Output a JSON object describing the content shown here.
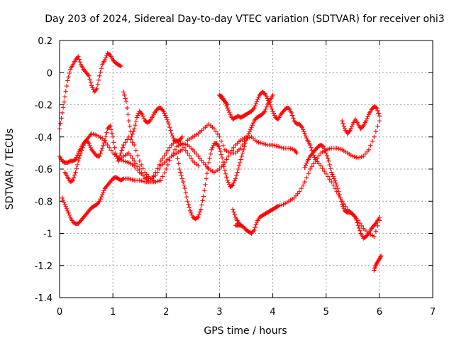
{
  "chart_data": {
    "type": "scatter",
    "title": "Day 203 of 2024, Sidereal Day-to-day VTEC variation (SDTVAR) for receiver ohi3",
    "xlabel": "GPS time / hours",
    "ylabel": "SDTVAR / TECUs",
    "xlim": [
      0,
      7
    ],
    "ylim": [
      -1.4,
      0.2
    ],
    "xticks": [
      0,
      1,
      2,
      3,
      4,
      5,
      6,
      7
    ],
    "yticks": [
      -1.4,
      -1.2,
      -1,
      -0.8,
      -0.6,
      -0.4,
      -0.2,
      0,
      0.2
    ],
    "grid": true,
    "marker": "+",
    "color": "#ff0000",
    "series": [
      {
        "name": "trace-1",
        "x": [
          0.0,
          0.05,
          0.1,
          0.15,
          0.2,
          0.25,
          0.3,
          0.35,
          0.4,
          0.45,
          0.5,
          0.55,
          0.6,
          0.65,
          0.7,
          0.75,
          0.8,
          0.85,
          0.9,
          0.95,
          1.0,
          1.05,
          1.1,
          1.15
        ],
        "y": [
          -0.35,
          -0.25,
          -0.15,
          -0.05,
          0.02,
          0.05,
          0.08,
          0.1,
          0.05,
          0.02,
          0.0,
          -0.02,
          -0.08,
          -0.12,
          -0.1,
          -0.02,
          0.05,
          0.08,
          0.12,
          0.11,
          0.08,
          0.06,
          0.05,
          0.04
        ]
      },
      {
        "name": "trace-2",
        "x": [
          0.0,
          0.05,
          0.1,
          0.15,
          0.2,
          0.25,
          0.3,
          0.35,
          0.4,
          0.45,
          0.5,
          0.55,
          0.6,
          0.65,
          0.7,
          0.75,
          0.8,
          0.85,
          0.9,
          0.95,
          1.0,
          1.05,
          1.1,
          1.2,
          1.3,
          1.4,
          1.5,
          1.6,
          1.7,
          1.8,
          1.9,
          2.0,
          2.1,
          2.2,
          2.3,
          2.4,
          2.5,
          2.6
        ],
        "y": [
          -0.52,
          -0.55,
          -0.56,
          -0.56,
          -0.55,
          -0.55,
          -0.54,
          -0.5,
          -0.47,
          -0.44,
          -0.42,
          -0.44,
          -0.48,
          -0.5,
          -0.52,
          -0.52,
          -0.47,
          -0.42,
          -0.35,
          -0.33,
          -0.4,
          -0.5,
          -0.55,
          -0.52,
          -0.5,
          -0.55,
          -0.6,
          -0.66,
          -0.68,
          -0.62,
          -0.55,
          -0.5,
          -0.45,
          -0.42,
          -0.45,
          -0.5,
          -0.55,
          -0.58
        ]
      },
      {
        "name": "trace-3",
        "x": [
          0.05,
          0.1,
          0.15,
          0.2,
          0.25,
          0.3,
          0.35,
          0.4,
          0.45,
          0.5,
          0.55,
          0.6,
          0.65,
          0.7,
          0.75,
          0.8,
          0.85,
          0.9,
          0.95,
          1.0,
          1.05,
          1.1,
          1.15,
          1.2,
          1.3,
          1.4,
          1.5,
          1.6,
          1.7,
          1.8
        ],
        "y": [
          -0.78,
          -0.82,
          -0.86,
          -0.9,
          -0.93,
          -0.94,
          -0.94,
          -0.92,
          -0.9,
          -0.88,
          -0.86,
          -0.84,
          -0.83,
          -0.82,
          -0.8,
          -0.76,
          -0.72,
          -0.7,
          -0.68,
          -0.66,
          -0.65,
          -0.66,
          -0.67,
          -0.66,
          -0.66,
          -0.67,
          -0.67,
          -0.68,
          -0.68,
          -0.68
        ]
      },
      {
        "name": "trace-4",
        "x": [
          0.1,
          0.15,
          0.2,
          0.25,
          0.3,
          0.35,
          0.4,
          0.45,
          0.5,
          0.55,
          0.6,
          0.7,
          0.8,
          0.9,
          1.0,
          1.1,
          1.2,
          1.3,
          1.4,
          1.5,
          1.6,
          1.7,
          1.8,
          1.9,
          2.0,
          2.1,
          2.2,
          2.3
        ],
        "y": [
          -0.62,
          -0.65,
          -0.68,
          -0.67,
          -0.62,
          -0.55,
          -0.5,
          -0.45,
          -0.42,
          -0.4,
          -0.38,
          -0.39,
          -0.41,
          -0.45,
          -0.5,
          -0.53,
          -0.55,
          -0.56,
          -0.58,
          -0.62,
          -0.65,
          -0.66,
          -0.64,
          -0.58,
          -0.55,
          -0.52,
          -0.5,
          -0.48
        ]
      },
      {
        "name": "trace-5",
        "x": [
          1.2,
          1.25,
          1.3,
          1.35,
          1.4,
          1.45,
          1.5,
          1.55,
          1.6,
          1.65,
          1.7,
          1.75,
          1.8,
          1.85,
          1.9,
          1.95,
          2.0,
          2.05,
          2.1,
          2.15,
          2.2,
          2.25,
          2.3
        ],
        "y": [
          -0.12,
          -0.18,
          -0.3,
          -0.4,
          -0.35,
          -0.28,
          -0.24,
          -0.26,
          -0.3,
          -0.31,
          -0.3,
          -0.27,
          -0.24,
          -0.22,
          -0.22,
          -0.24,
          -0.28,
          -0.32,
          -0.38,
          -0.42,
          -0.43,
          -0.42,
          -0.4
        ]
      },
      {
        "name": "trace-6",
        "x": [
          1.1,
          1.15,
          1.2,
          1.3,
          1.4,
          1.5,
          1.6,
          1.7,
          1.8,
          1.9,
          2.0,
          2.1,
          2.2,
          2.3,
          2.4,
          2.5,
          2.6,
          2.7,
          2.8,
          2.9,
          3.0,
          3.1,
          3.2,
          3.3,
          3.4,
          3.5
        ],
        "y": [
          -0.55,
          -0.5,
          -0.45,
          -0.4,
          -0.45,
          -0.55,
          -0.62,
          -0.66,
          -0.68,
          -0.67,
          -0.6,
          -0.52,
          -0.46,
          -0.44,
          -0.45,
          -0.48,
          -0.52,
          -0.56,
          -0.6,
          -0.62,
          -0.6,
          -0.56,
          -0.5,
          -0.45,
          -0.42,
          -0.4
        ]
      },
      {
        "name": "trace-7",
        "x": [
          2.2,
          2.25,
          2.3,
          2.35,
          2.4,
          2.45,
          2.5,
          2.55,
          2.6,
          2.65,
          2.7,
          2.75,
          2.8,
          2.85,
          2.9,
          2.95,
          3.0,
          3.05,
          3.1,
          3.15,
          3.2,
          3.25,
          3.3,
          3.35,
          3.4,
          3.45,
          3.5,
          3.55,
          3.6,
          3.65,
          3.7,
          3.75,
          3.8,
          3.85,
          3.9,
          3.95,
          4.0
        ],
        "y": [
          -0.5,
          -0.6,
          -0.66,
          -0.72,
          -0.8,
          -0.86,
          -0.9,
          -0.91,
          -0.9,
          -0.85,
          -0.77,
          -0.66,
          -0.56,
          -0.48,
          -0.44,
          -0.44,
          -0.47,
          -0.53,
          -0.61,
          -0.67,
          -0.71,
          -0.7,
          -0.66,
          -0.6,
          -0.54,
          -0.48,
          -0.42,
          -0.38,
          -0.34,
          -0.3,
          -0.28,
          -0.27,
          -0.26,
          -0.24,
          -0.2,
          -0.17,
          -0.14
        ]
      },
      {
        "name": "trace-8",
        "x": [
          2.4,
          2.5,
          2.6,
          2.7,
          2.8,
          2.9,
          3.0,
          3.1,
          3.2,
          3.3,
          3.4,
          3.5,
          3.6,
          3.7,
          3.8,
          3.9,
          4.0,
          4.1,
          4.2,
          4.3,
          4.4,
          4.45
        ],
        "y": [
          -0.42,
          -0.4,
          -0.38,
          -0.35,
          -0.32,
          -0.35,
          -0.4,
          -0.48,
          -0.5,
          -0.5,
          -0.47,
          -0.41,
          -0.4,
          -0.43,
          -0.44,
          -0.45,
          -0.45,
          -0.46,
          -0.47,
          -0.47,
          -0.48,
          -0.5
        ]
      },
      {
        "name": "trace-9",
        "x": [
          3.0,
          3.05,
          3.1,
          3.15,
          3.2,
          3.25,
          3.3,
          3.35,
          3.4,
          3.45,
          3.5,
          3.55,
          3.6,
          3.65,
          3.7,
          3.75,
          3.8,
          3.85,
          3.9,
          3.95,
          4.0,
          4.05,
          4.1,
          4.15,
          4.2,
          4.25,
          4.3,
          4.35,
          4.4,
          4.45,
          4.5,
          4.55,
          4.6,
          4.65,
          4.7,
          4.75,
          4.8,
          4.9,
          5.0,
          5.1,
          5.2,
          5.3,
          5.4,
          5.5,
          5.6,
          5.7,
          5.8,
          5.9,
          6.0
        ],
        "y": [
          -0.14,
          -0.15,
          -0.18,
          -0.22,
          -0.26,
          -0.29,
          -0.28,
          -0.27,
          -0.28,
          -0.27,
          -0.26,
          -0.25,
          -0.24,
          -0.22,
          -0.18,
          -0.14,
          -0.12,
          -0.13,
          -0.16,
          -0.2,
          -0.24,
          -0.28,
          -0.29,
          -0.26,
          -0.24,
          -0.22,
          -0.22,
          -0.25,
          -0.3,
          -0.32,
          -0.32,
          -0.34,
          -0.38,
          -0.42,
          -0.45,
          -0.5,
          -0.54,
          -0.58,
          -0.63,
          -0.68,
          -0.74,
          -0.8,
          -0.85,
          -0.88,
          -0.92,
          -0.97,
          -1.0,
          -1.02,
          -0.92
        ]
      },
      {
        "name": "trace-10",
        "x": [
          3.3,
          3.35,
          3.4,
          3.45,
          3.5,
          3.55,
          3.6,
          3.65,
          3.7,
          3.75,
          3.8,
          3.85,
          3.9,
          3.95,
          4.0,
          4.05,
          4.1,
          4.2,
          4.3,
          4.4,
          4.5,
          4.6,
          4.7,
          4.8,
          4.9,
          5.0,
          5.1,
          5.2,
          5.3,
          5.4,
          5.5,
          5.6,
          5.7,
          5.8,
          5.9,
          6.0
        ],
        "y": [
          -0.95,
          -0.95,
          -0.95,
          -0.96,
          -0.98,
          -0.99,
          -1.0,
          -0.98,
          -0.93,
          -0.9,
          -0.89,
          -0.88,
          -0.87,
          -0.86,
          -0.85,
          -0.84,
          -0.83,
          -0.82,
          -0.8,
          -0.78,
          -0.74,
          -0.68,
          -0.6,
          -0.55,
          -0.5,
          -0.48,
          -0.47,
          -0.47,
          -0.48,
          -0.5,
          -0.52,
          -0.53,
          -0.52,
          -0.48,
          -0.4,
          -0.3
        ]
      },
      {
        "name": "trace-11",
        "x": [
          4.6,
          4.65,
          4.7,
          4.75,
          4.8,
          4.85,
          4.9,
          4.95,
          5.0,
          5.05,
          5.1,
          5.15,
          5.2,
          5.25,
          5.3,
          5.35,
          5.4,
          5.45,
          5.5,
          5.55,
          5.6,
          5.65,
          5.7,
          5.75,
          5.8,
          5.85,
          5.9,
          5.95,
          6.0
        ],
        "y": [
          -0.59,
          -0.55,
          -0.52,
          -0.5,
          -0.48,
          -0.46,
          -0.45,
          -0.46,
          -0.5,
          -0.55,
          -0.62,
          -0.66,
          -0.7,
          -0.76,
          -0.82,
          -0.86,
          -0.87,
          -0.87,
          -0.88,
          -0.9,
          -0.95,
          -1.0,
          -1.03,
          -1.02,
          -1.0,
          -0.97,
          -0.95,
          -0.93,
          -0.9
        ]
      },
      {
        "name": "trace-12",
        "x": [
          5.3,
          5.35,
          5.4,
          5.45,
          5.5,
          5.55,
          5.6,
          5.65,
          5.7,
          5.75,
          5.8,
          5.85,
          5.9,
          5.95,
          6.0
        ],
        "y": [
          -0.3,
          -0.35,
          -0.38,
          -0.36,
          -0.32,
          -0.29,
          -0.32,
          -0.35,
          -0.33,
          -0.3,
          -0.26,
          -0.23,
          -0.21,
          -0.22,
          -0.27
        ]
      },
      {
        "name": "trace-13",
        "x": [
          3.0,
          3.05,
          3.1,
          3.15
        ],
        "y": [
          -0.14,
          -0.16,
          -0.18,
          -0.2
        ]
      },
      {
        "name": "trace-14",
        "x": [
          3.25,
          3.3,
          3.35,
          3.4
        ],
        "y": [
          -0.85,
          -0.9,
          -0.93,
          -0.95
        ]
      },
      {
        "name": "trace-15",
        "x": [
          5.9,
          5.93,
          5.96,
          6.0,
          6.03
        ],
        "y": [
          -1.23,
          -1.2,
          -1.18,
          -1.16,
          -1.14
        ]
      }
    ]
  }
}
